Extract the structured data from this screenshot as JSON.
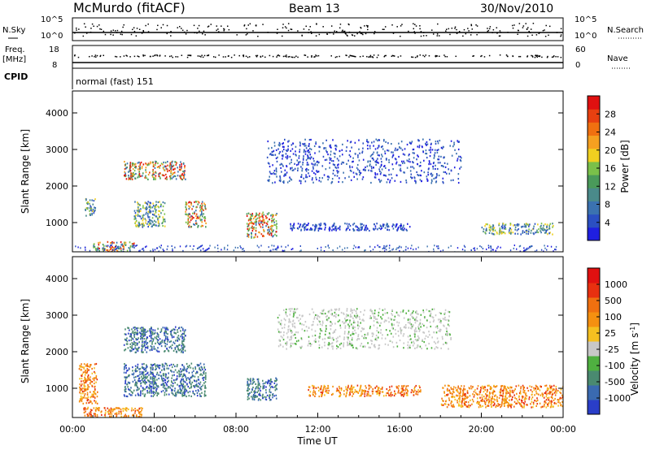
{
  "header": {
    "title": "McMurdo (fitACF)",
    "beam": "Beam 13",
    "date": "30/Nov/2010"
  },
  "strip_panels": {
    "nsky_label": "N.Sky",
    "nsky_ticks": [
      "10^5",
      "10^0"
    ],
    "nsearch_label": "N.Search",
    "nsearch_ticks": [
      "10^5",
      "10^0"
    ],
    "freq_label_1": "Freq.",
    "freq_label_2": "[MHz]",
    "freq_ticks": [
      "18",
      "8"
    ],
    "nave_label": "Nave",
    "nave_ticks": [
      "60",
      "0"
    ],
    "cpid_label": "CPID",
    "cpid_value": "normal (fast) 151"
  },
  "chart_data": [
    {
      "type": "heatmap",
      "name": "power",
      "ylabel": "Slant Range [km]",
      "yticks": [
        "1000",
        "2000",
        "3000",
        "4000"
      ],
      "ylim": [
        200,
        4600
      ],
      "colorbar_label": "Power [dB]",
      "colorbar_ticks": [
        "4",
        "8",
        "12",
        "16",
        "20",
        "24",
        "28"
      ],
      "colorbar_colors": [
        "#1f1fe0",
        "#2b4fc2",
        "#3b72b0",
        "#4a8a8a",
        "#4a9a5a",
        "#7ac04a",
        "#f0d020",
        "#f5a020",
        "#f07010",
        "#e84010",
        "#e01010"
      ],
      "echo_regions": [
        {
          "t_start": 0.6,
          "t_end": 1.1,
          "r_start": 1200,
          "r_end": 1700,
          "level": "medium"
        },
        {
          "t_start": 1.0,
          "t_end": 3.0,
          "r_start": 200,
          "r_end": 500,
          "level": "high"
        },
        {
          "t_start": 2.5,
          "t_end": 5.5,
          "r_start": 2200,
          "r_end": 2700,
          "level": "high"
        },
        {
          "t_start": 3.0,
          "t_end": 4.5,
          "r_start": 900,
          "r_end": 1600,
          "level": "medium"
        },
        {
          "t_start": 5.5,
          "t_end": 6.5,
          "r_start": 900,
          "r_end": 1600,
          "level": "high"
        },
        {
          "t_start": 8.5,
          "t_end": 10.0,
          "r_start": 600,
          "r_end": 1300,
          "level": "high"
        },
        {
          "t_start": 9.5,
          "t_end": 19.0,
          "r_start": 2100,
          "r_end": 3300,
          "level": "low"
        },
        {
          "t_start": 10.5,
          "t_end": 16.5,
          "r_start": 800,
          "r_end": 1000,
          "level": "low"
        },
        {
          "t_start": 20.0,
          "t_end": 23.5,
          "r_start": 700,
          "r_end": 1000,
          "level": "medium"
        }
      ]
    },
    {
      "type": "heatmap",
      "name": "velocity",
      "ylabel": "Slant Range [km]",
      "yticks": [
        "1000",
        "2000",
        "3000",
        "4000"
      ],
      "ylim": [
        200,
        4600
      ],
      "xlabel": "Time UT",
      "xticks": [
        "00:00",
        "04:00",
        "08:00",
        "12:00",
        "16:00",
        "20:00",
        "00:00"
      ],
      "xlim": [
        0,
        24
      ],
      "colorbar_label": "Velocity [m s",
      "colorbar_label_sup": "-1",
      "colorbar_label_end": "]",
      "colorbar_ticks": [
        "1000",
        "500",
        "100",
        "25",
        "-25",
        "-100",
        "-500",
        "-1000"
      ],
      "colorbar_colors": [
        "#2a3ec8",
        "#3a6ab0",
        "#4a8a70",
        "#4fb040",
        "#c8c8c8",
        "#f5c020",
        "#f59010",
        "#f07010",
        "#e83010",
        "#e01010"
      ],
      "echo_regions": [
        {
          "t_start": 2.5,
          "t_end": 5.5,
          "r_start": 2000,
          "r_end": 2700,
          "sign": "positive"
        },
        {
          "t_start": 2.5,
          "t_end": 6.5,
          "r_start": 800,
          "r_end": 1700,
          "sign": "positive"
        },
        {
          "t_start": 8.5,
          "t_end": 10.0,
          "r_start": 700,
          "r_end": 1300,
          "sign": "positive"
        },
        {
          "t_start": 10.0,
          "t_end": 18.5,
          "r_start": 2100,
          "r_end": 3200,
          "sign": "near-zero"
        },
        {
          "t_start": 0.3,
          "t_end": 1.2,
          "r_start": 600,
          "r_end": 1700,
          "sign": "negative"
        },
        {
          "t_start": 11.5,
          "t_end": 17.0,
          "r_start": 800,
          "r_end": 1100,
          "sign": "negative"
        },
        {
          "t_start": 18.0,
          "t_end": 24.0,
          "r_start": 500,
          "r_end": 1100,
          "sign": "negative"
        },
        {
          "t_start": 0.5,
          "t_end": 3.5,
          "r_start": 200,
          "r_end": 500,
          "sign": "negative"
        }
      ]
    }
  ]
}
